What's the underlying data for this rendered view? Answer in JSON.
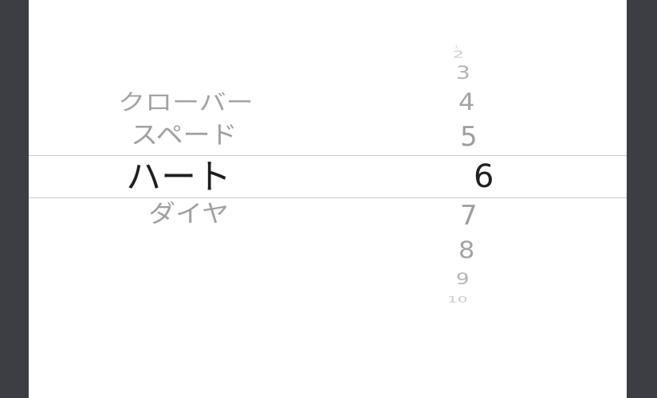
{
  "picker": {
    "suit_column": {
      "items": [
        "クローバー",
        "スペード",
        "ハート",
        "ダイヤ"
      ],
      "selected": "ハート"
    },
    "number_column": {
      "items": [
        "1",
        "2",
        "3",
        "4",
        "5",
        "6",
        "7",
        "8",
        "9",
        "10"
      ],
      "selected": "6"
    }
  }
}
